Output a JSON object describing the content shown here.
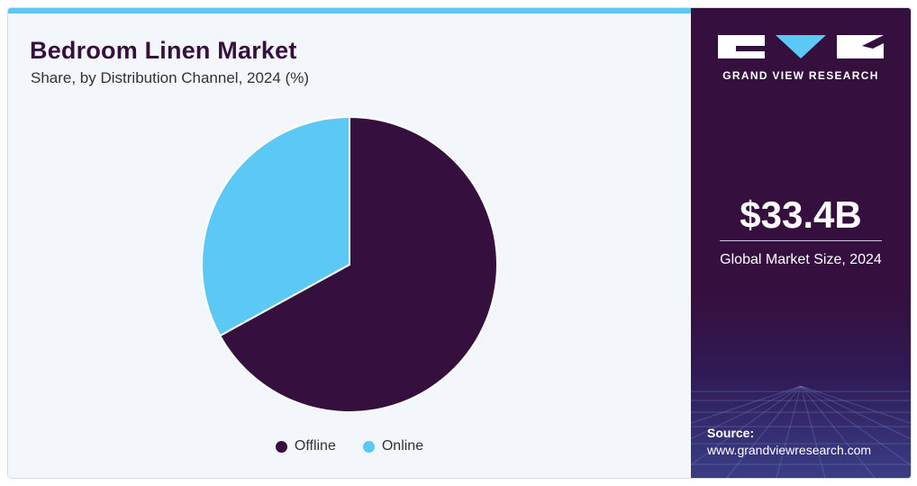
{
  "chart_data": {
    "type": "pie",
    "title": "Bedroom Linen Market",
    "subtitle": "Share, by Distribution Channel, 2024 (%)",
    "categories": [
      "Offline",
      "Online"
    ],
    "values": [
      67,
      33
    ],
    "colors": [
      "#35103f",
      "#5bc8f5"
    ],
    "legend": "bottom-center"
  },
  "sidebar": {
    "brand": "GRAND VIEW RESEARCH",
    "market_value": "$33.4B",
    "market_label": "Global Market Size, 2024",
    "source_label": "Source:",
    "source_url": "www.grandviewresearch.com"
  }
}
